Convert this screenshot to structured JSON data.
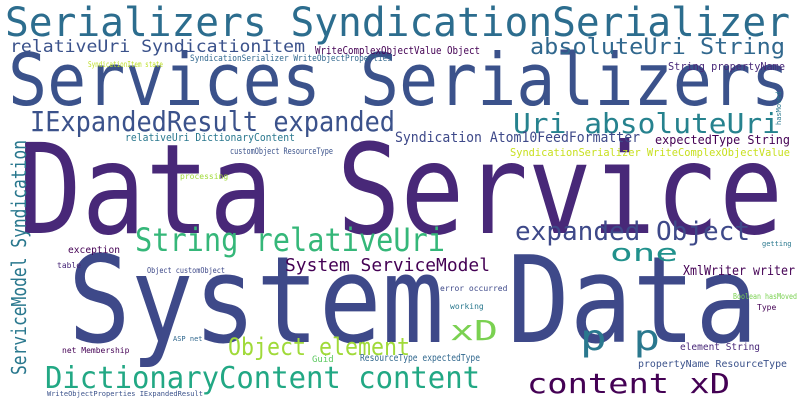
{
  "words": [
    "Serializers SyndicationSerializer",
    "Services Serializers",
    "Data Service",
    "System Data",
    "relativeUri SyndicationItem",
    "absoluteUri String",
    "IExpandedResult expanded",
    "Uri absoluteUri",
    "String relativeUri",
    "expanded Object",
    "one",
    "System ServiceModel",
    "XmlWriter writer",
    "xD",
    "Object element",
    "p p",
    "DictionaryContent content",
    "content xD",
    "ServiceModel Syndication",
    "Syndication Atom10FeedFormatter",
    "SyndicationSerializer WriteComplexObjectValue",
    "expectedType String",
    "relativeUri DictionaryContent",
    "customObject ResourceType",
    "WriteComplexObjectValue Object",
    "SyndicationSerializer WriteObjectProperties",
    "String propertyName",
    "SyndicationItem state",
    "exception",
    "Object customObject",
    "element String",
    "propertyName ResourceType",
    "ResourceType expectedType",
    "Boolean hasMoved",
    "working",
    "error occurred",
    "Guid",
    "processing",
    "net Membership",
    "table",
    "ASP net",
    "WriteObjectProperties IExpandedResult",
    "getting",
    "Type",
    "hasMoved"
  ]
}
